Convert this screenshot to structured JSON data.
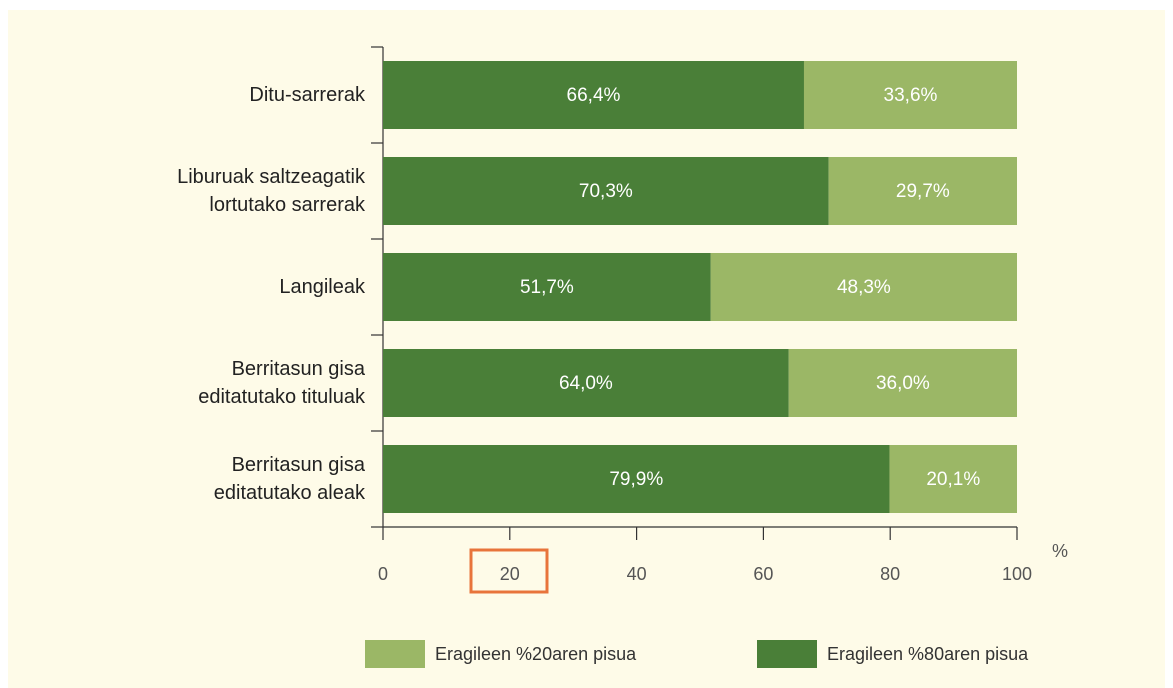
{
  "chart_data": {
    "type": "stacked-bar-horizontal",
    "categories": [
      "Ditu-sarrerak",
      "Liburuak saltzeagatik\nlortutako sarrerak",
      "Langileak",
      "Berritasun gisa\neditatutako tituluak",
      "Berritasun gisa\neditatutako aleak"
    ],
    "series": [
      {
        "name": "Eragileen %80aren pisua",
        "color": "#4a7f38",
        "values": [
          66.4,
          70.3,
          51.7,
          64.0,
          79.9
        ],
        "value_labels": [
          "66,4%",
          "70,3%",
          "51,7%",
          "64,0%",
          "79,9%"
        ]
      },
      {
        "name": "Eragileen %20aren pisua",
        "color": "#9bb766",
        "values": [
          33.6,
          29.7,
          48.3,
          36.0,
          20.1
        ],
        "value_labels": [
          "33,6%",
          "29,7%",
          "48,3%",
          "36,0%",
          "20,1%"
        ]
      }
    ],
    "xlabel": "%",
    "xlim": [
      0,
      100
    ],
    "xticks": [
      0,
      20,
      40,
      60,
      80,
      100
    ]
  }
}
